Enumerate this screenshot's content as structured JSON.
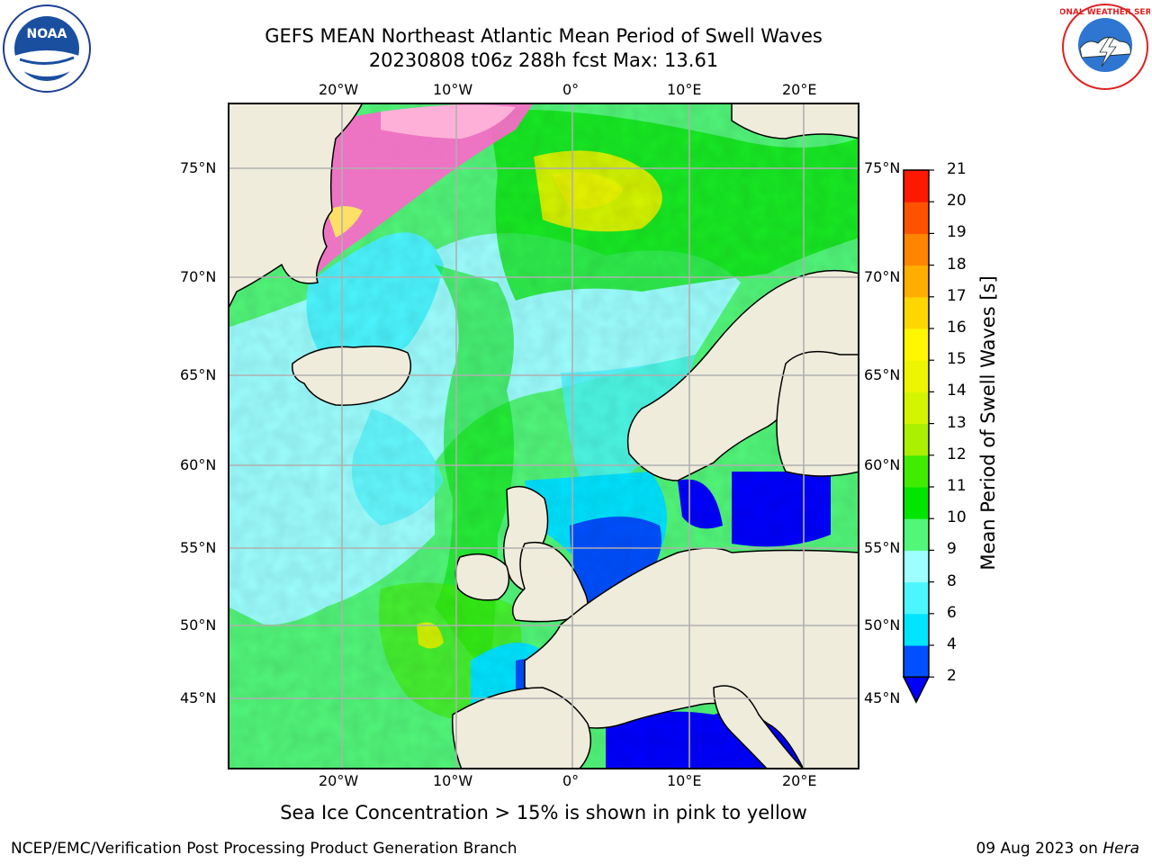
{
  "title": {
    "line1": "GEFS MEAN Northeast Atlantic Mean Period of Swell Waves",
    "line2": "20230808 t06z 288h fcst   Max: 13.61"
  },
  "map": {
    "lon_labels": [
      "20°W",
      "10°W",
      "0°",
      "10°E",
      "20°E"
    ],
    "lat_labels_left": [
      "75°N",
      "70°N",
      "65°N",
      "60°N",
      "55°N",
      "50°N",
      "45°N"
    ],
    "lat_labels_right": [
      "75°N",
      "70°N",
      "65°N",
      "60°N",
      "55°N",
      "50°N",
      "45°N"
    ]
  },
  "colorbar": {
    "label": "Mean Period of Swell Waves [s]",
    "ticks": [
      "2",
      "4",
      "6",
      "8",
      "9",
      "10",
      "11",
      "12",
      "13",
      "14",
      "15",
      "16",
      "17",
      "18",
      "19",
      "20",
      "21"
    ],
    "colors": [
      "#0050ff",
      "#00e4ff",
      "#4cf6ff",
      "#9dffff",
      "#52f77a",
      "#00e600",
      "#40ec00",
      "#aaf000",
      "#d4f500",
      "#eef500",
      "#fff700",
      "#ffd700",
      "#ffae00",
      "#ff8400",
      "#ff5200",
      "#ff1800"
    ],
    "under_color": "#0000ff"
  },
  "caption": "Sea Ice Concentration > 15% is shown in pink to yellow",
  "footer": {
    "left": "NCEP/EMC/Verification Post Processing Product Generation Branch",
    "right_date": "09 Aug 2023 on",
    "right_host": "Hera"
  },
  "logos": {
    "left": "noaa-logo",
    "right": "national-weather-service-logo",
    "right_text": "NATIONAL WEATHER SERVICE"
  }
}
